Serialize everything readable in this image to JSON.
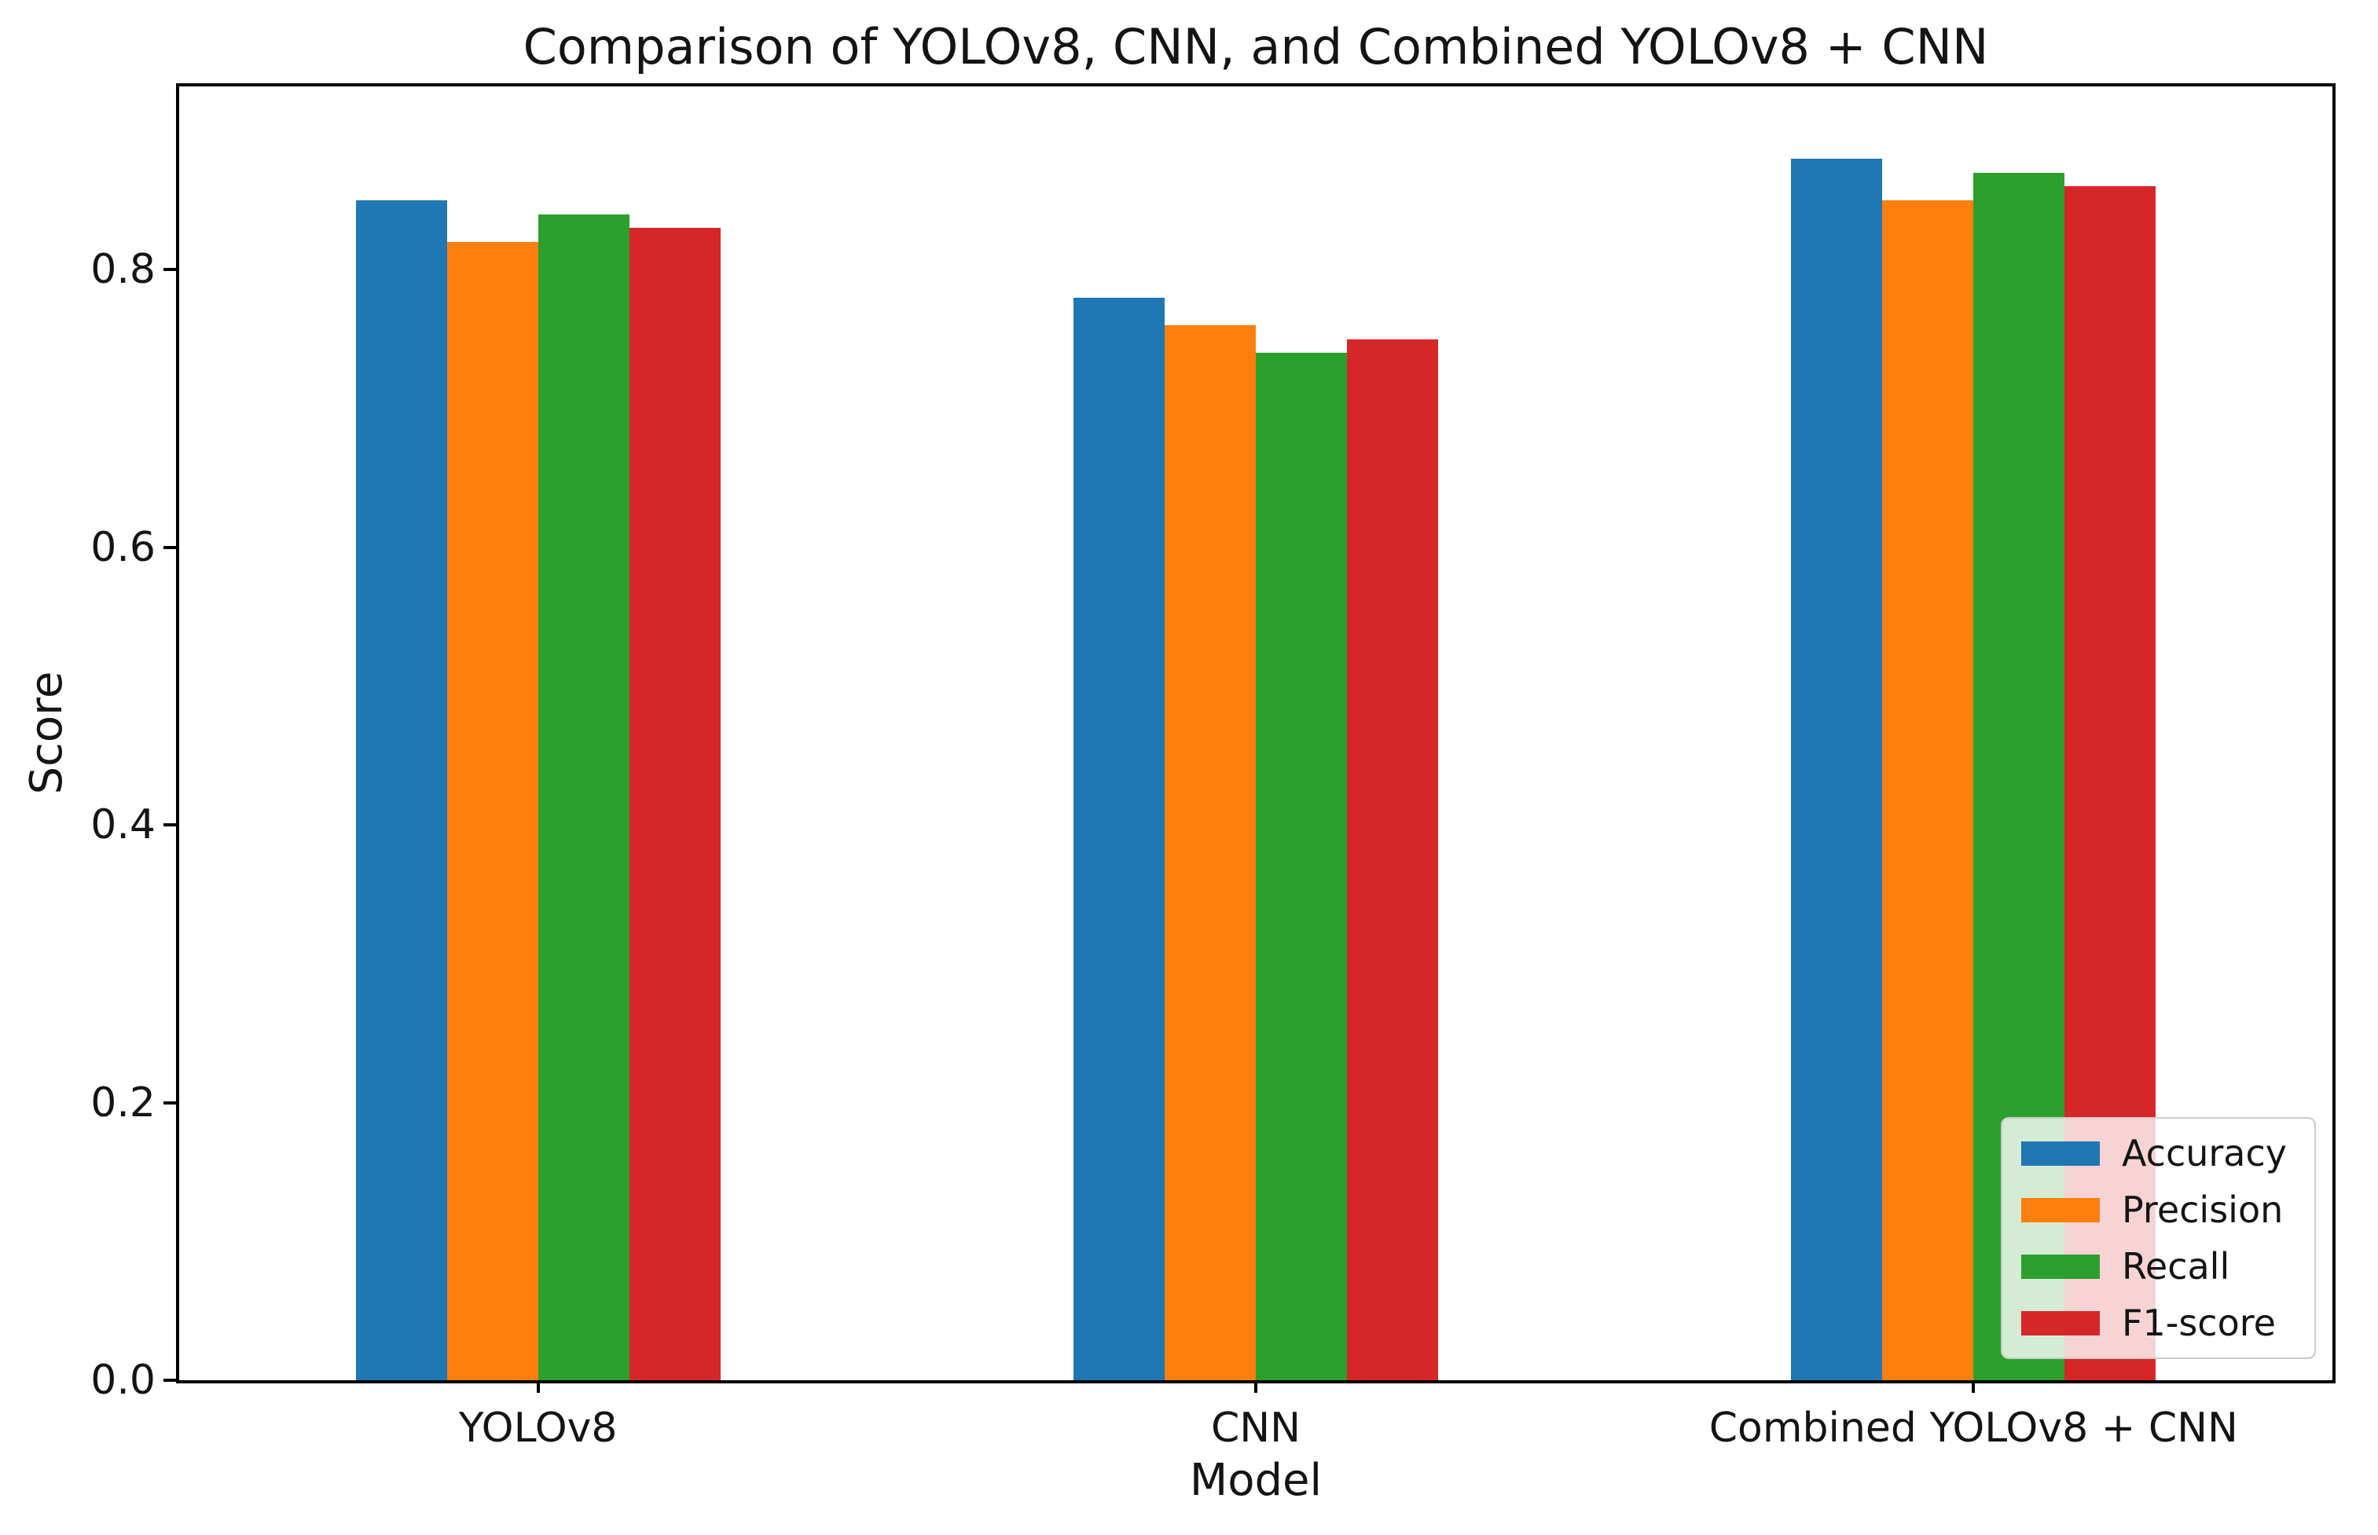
{
  "chart_data": {
    "type": "bar",
    "title": "Comparison of YOLOv8, CNN, and Combined YOLOv8 + CNN",
    "xlabel": "Model",
    "ylabel": "Score",
    "categories": [
      "YOLOv8",
      "CNN",
      "Combined YOLOv8 + CNN"
    ],
    "series": [
      {
        "name": "Accuracy",
        "color": "#1f77b4",
        "values": [
          0.85,
          0.78,
          0.88
        ]
      },
      {
        "name": "Precision",
        "color": "#ff7f0e",
        "values": [
          0.82,
          0.76,
          0.85
        ]
      },
      {
        "name": "Recall",
        "color": "#2ca02c",
        "values": [
          0.84,
          0.74,
          0.87
        ]
      },
      {
        "name": "F1-score",
        "color": "#d62728",
        "values": [
          0.83,
          0.75,
          0.86
        ]
      }
    ],
    "ytick_labels": [
      "0.0",
      "0.2",
      "0.4",
      "0.6",
      "0.8"
    ],
    "ytick_values": [
      0.0,
      0.2,
      0.4,
      0.6,
      0.8
    ],
    "ylim": [
      0,
      0.932
    ],
    "grid": false,
    "legend_position": "lower right",
    "axis_color": "#000000",
    "background_color": "#ffffff"
  }
}
